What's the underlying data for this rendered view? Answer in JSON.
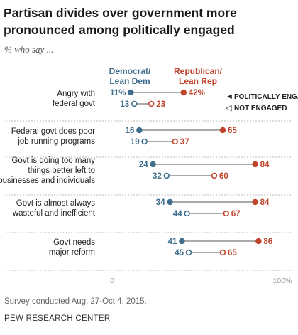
{
  "title": "Partisan divides over government more pronounced among politically engaged",
  "subtitle": "% who say ...",
  "note": "Survey conducted Aug. 27-Oct 4, 2015.",
  "source": "PEW RESEARCH CENTER",
  "colors": {
    "dem": "#3f6d8c",
    "rep": "#c0432c",
    "line": "#555555",
    "tick": "#999999"
  },
  "chart_data": {
    "type": "dot",
    "xlim": [
      0,
      100
    ],
    "x_tick_labels": [
      "0",
      "100%"
    ],
    "series_labels": {
      "dem": [
        "Democrat/",
        "Lean Dem"
      ],
      "rep": [
        "Republican/",
        "Lean Rep"
      ]
    },
    "legend": {
      "engaged": "POLITICALLY ENGAGED",
      "not_engaged": "NOT ENGAGED"
    },
    "categories": [
      {
        "label": [
          "Angry with",
          "federal govt"
        ],
        "engaged": {
          "dem": 11,
          "rep": 42,
          "dem_label": "11%",
          "rep_label": "42%"
        },
        "not_engaged": {
          "dem": 13,
          "rep": 23,
          "dem_label": "13",
          "rep_label": "23"
        }
      },
      {
        "label": [
          "Federal govt does poor",
          "job running programs"
        ],
        "engaged": {
          "dem": 16,
          "rep": 65,
          "dem_label": "16",
          "rep_label": "65"
        },
        "not_engaged": {
          "dem": 19,
          "rep": 37,
          "dem_label": "19",
          "rep_label": "37"
        }
      },
      {
        "label": [
          "Govt is doing too many",
          "things better left to",
          "businesses and individuals"
        ],
        "engaged": {
          "dem": 24,
          "rep": 84,
          "dem_label": "24",
          "rep_label": "84"
        },
        "not_engaged": {
          "dem": 32,
          "rep": 60,
          "dem_label": "32",
          "rep_label": "60"
        }
      },
      {
        "label": [
          "Govt is almost always",
          "wasteful and inefficient"
        ],
        "engaged": {
          "dem": 34,
          "rep": 84,
          "dem_label": "34",
          "rep_label": "84"
        },
        "not_engaged": {
          "dem": 44,
          "rep": 67,
          "dem_label": "44",
          "rep_label": "67"
        }
      },
      {
        "label": [
          "Govt needs",
          "major reform"
        ],
        "engaged": {
          "dem": 41,
          "rep": 86,
          "dem_label": "41",
          "rep_label": "86"
        },
        "not_engaged": {
          "dem": 45,
          "rep": 65,
          "dem_label": "45",
          "rep_label": "65"
        }
      }
    ]
  }
}
